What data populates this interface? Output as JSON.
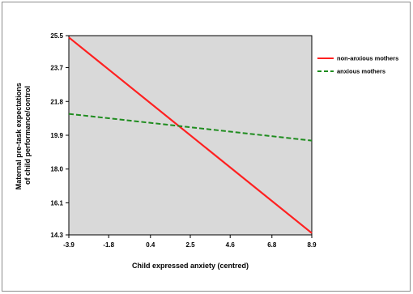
{
  "chart_data": {
    "type": "line",
    "title": "",
    "xlabel": "Child expressed anxiety (centred)",
    "ylabel_lines": [
      "Maternal pre-task expectations",
      "of child performance/control"
    ],
    "x_ticks": [
      "-3.9",
      "-1.8",
      "0.4",
      "2.5",
      "4.6",
      "6.8",
      "8.9"
    ],
    "y_ticks": [
      "14.3",
      "16.1",
      "18.0",
      "19.9",
      "21.8",
      "23.7",
      "25.5"
    ],
    "xlim": [
      -3.9,
      8.9
    ],
    "ylim": [
      14.3,
      25.5
    ],
    "grid": false,
    "plot_background": "#d9d9d9",
    "legend_position": "right",
    "series": [
      {
        "name": "non-anxious mothers",
        "color": "#ff2020",
        "dash": "solid",
        "x": [
          -3.9,
          8.9
        ],
        "y": [
          25.4,
          14.4
        ]
      },
      {
        "name": "anxious mothers",
        "color": "#1e8c1e",
        "dash": "dashed",
        "x": [
          -3.9,
          8.9
        ],
        "y": [
          21.1,
          19.6
        ]
      }
    ]
  }
}
